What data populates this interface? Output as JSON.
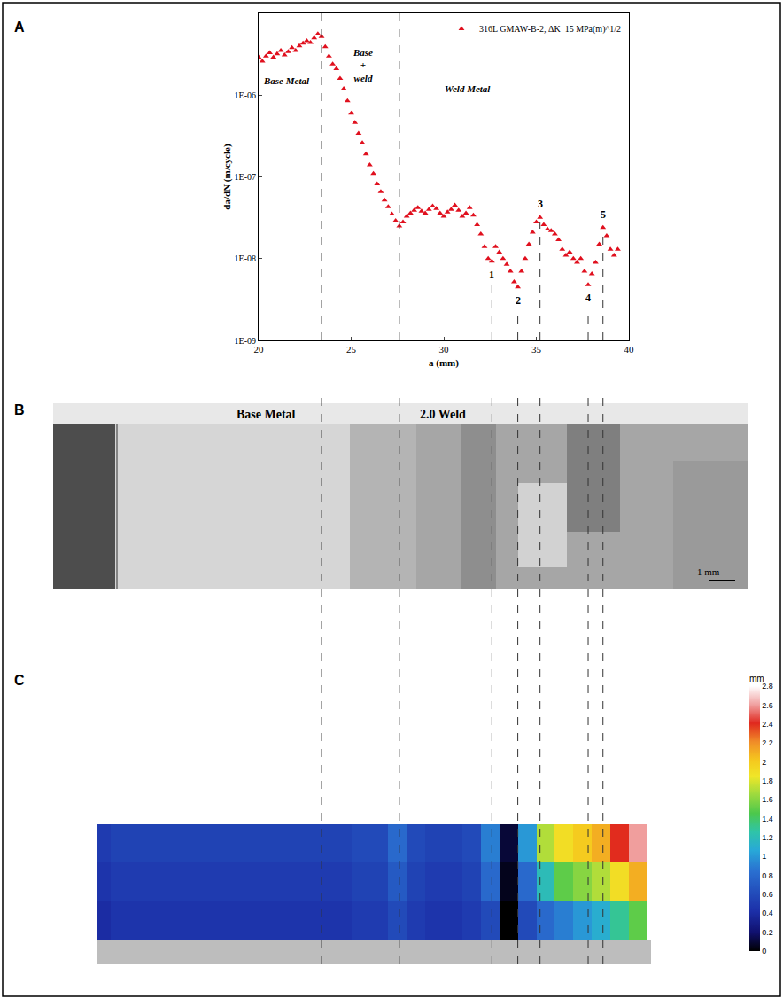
{
  "chart_data": {
    "type": "scatter",
    "x": [
      20.0,
      20.2,
      20.4,
      20.6,
      20.8,
      21.0,
      21.2,
      21.4,
      21.6,
      21.8,
      22.0,
      22.2,
      22.4,
      22.6,
      22.8,
      23.0,
      23.2,
      23.4,
      23.6,
      23.8,
      24.0,
      24.2,
      24.4,
      24.6,
      24.8,
      25.0,
      25.2,
      25.4,
      25.6,
      25.8,
      26.0,
      26.2,
      26.4,
      26.6,
      26.8,
      27.0,
      27.2,
      27.4,
      27.6,
      27.8,
      28.0,
      28.2,
      28.4,
      28.6,
      28.8,
      29.0,
      29.2,
      29.4,
      29.6,
      29.8,
      30.0,
      30.2,
      30.4,
      30.6,
      30.8,
      31.0,
      31.2,
      31.4,
      31.6,
      31.8,
      32.0,
      32.2,
      32.4,
      32.6,
      32.8,
      33.0,
      33.2,
      33.4,
      33.6,
      33.8,
      34.0,
      34.2,
      34.4,
      34.6,
      34.8,
      35.0,
      35.2,
      35.4,
      35.6,
      35.8,
      36.0,
      36.2,
      36.4,
      36.6,
      36.8,
      37.0,
      37.2,
      37.4,
      37.6,
      37.8,
      38.0,
      38.2,
      38.4,
      38.6,
      38.8,
      39.0,
      39.2,
      39.4
    ],
    "series": [
      {
        "name": "316L GMAW-B-2, ΔK  15 MPa(m)^1/2",
        "color": "#e0101e",
        "marker": "triangle-up",
        "values": [
          2.9e-06,
          2.6e-06,
          3e-06,
          3.3e-06,
          2.9e-06,
          3.2e-06,
          3.5e-06,
          3.1e-06,
          3.4e-06,
          3.8e-06,
          3.5e-06,
          4e-06,
          4.3e-06,
          4.6e-06,
          4.4e-06,
          5e-06,
          5.6e-06,
          5.2e-06,
          3.9e-06,
          3e-06,
          2.4e-06,
          2.1e-06,
          1.6e-06,
          1.2e-06,
          8.5e-07,
          6e-07,
          4.6e-07,
          3.4e-07,
          2.6e-07,
          1.9e-07,
          1.4e-07,
          1.1e-07,
          8.2e-08,
          6.6e-08,
          5.2e-08,
          4.3e-08,
          3.5e-08,
          2.9e-08,
          2.5e-08,
          2.8e-08,
          3.3e-08,
          3.6e-08,
          3.9e-08,
          4.2e-08,
          3.8e-08,
          3.6e-08,
          4e-08,
          4.4e-08,
          4.1e-08,
          3.6e-08,
          3.3e-08,
          3.7e-08,
          4e-08,
          4.5e-08,
          3.9e-08,
          3.3e-08,
          3.6e-08,
          4.2e-08,
          3.4e-08,
          2.6e-08,
          2e-08,
          1.4e-08,
          1e-08,
          9.3e-09,
          1.4e-08,
          1.2e-08,
          1e-08,
          8.5e-09,
          7e-09,
          5.2e-09,
          4.5e-09,
          7e-09,
          1e-08,
          1.5e-08,
          2.1e-08,
          2.8e-08,
          3.2e-08,
          2.6e-08,
          2.3e-08,
          2.2e-08,
          2e-08,
          1.7e-08,
          1.3e-08,
          1.1e-08,
          1.2e-08,
          1e-08,
          9e-09,
          1e-08,
          7e-09,
          4.8e-09,
          6.5e-09,
          9e-09,
          1.5e-08,
          2.4e-08,
          1.9e-08,
          1.3e-08,
          1.1e-08,
          1.3e-08
        ]
      }
    ],
    "x_label": "a (mm)",
    "y_label": "da/dN (m/cycle)",
    "xlim": [
      20,
      40
    ],
    "xticks": [
      20,
      25,
      30,
      35,
      40
    ],
    "ylim": [
      1e-09,
      1e-05
    ],
    "yticks": [
      {
        "value": 1e-09,
        "label": "1E-09"
      },
      {
        "value": 1e-08,
        "label": "1E-08"
      },
      {
        "value": 1e-07,
        "label": "1E-07"
      },
      {
        "value": 1e-06,
        "label": "1E-06"
      }
    ],
    "log": "y",
    "grid": false,
    "legend": "upper right",
    "region_labels": [
      {
        "text": "Base Metal",
        "x": 21.5,
        "y": 1.5e-06
      },
      {
        "text": "Base\n+\nweld",
        "x": 25.6,
        "y": 2.3e-06
      },
      {
        "text": "Weld Metal",
        "x": 31.3,
        "y": 1.2e-06
      }
    ],
    "region_bounds": [
      23.4,
      27.6
    ],
    "point_labels": [
      {
        "text": "1",
        "x": 32.6,
        "y": 9.3e-09
      },
      {
        "text": "2",
        "x": 34.0,
        "y": 4.5e-09
      },
      {
        "text": "3",
        "x": 35.2,
        "y": 3.2e-08
      },
      {
        "text": "4",
        "x": 37.8,
        "y": 4.8e-09
      },
      {
        "text": "5",
        "x": 38.6,
        "y": 2.4e-08
      }
    ]
  },
  "panel_letters": [
    "A",
    "B",
    "C"
  ],
  "fractograph": {
    "labels": [
      "Base Metal",
      "2.0 Weld"
    ],
    "scale_bar": "1 mm"
  },
  "height_map": {
    "a": [
      11.5,
      12.5,
      13.5,
      14.5,
      15.5,
      16.5,
      17.5,
      18.5,
      19.5,
      20.5,
      21.5,
      22.5,
      23.5,
      24.5,
      25.5,
      26.5,
      27.5,
      28.5,
      29.5,
      30.5,
      31.5,
      32.5,
      33.5,
      34.5,
      35.5,
      36.5,
      37.5,
      38.5,
      39.5,
      40.5
    ],
    "rows": [
      [
        0.4,
        0.45,
        0.45,
        0.45,
        0.45,
        0.45,
        0.45,
        0.45,
        0.45,
        0.45,
        0.45,
        0.45,
        0.45,
        0.45,
        0.5,
        0.5,
        0.6,
        0.5,
        0.45,
        0.45,
        0.5,
        0.6,
        0.0,
        0.6,
        0.8,
        0.9,
        1.0,
        1.1,
        1.3,
        1.5
      ],
      [
        0.45,
        0.5,
        0.5,
        0.5,
        0.5,
        0.5,
        0.5,
        0.5,
        0.5,
        0.5,
        0.5,
        0.5,
        0.5,
        0.5,
        0.55,
        0.55,
        0.7,
        0.55,
        0.5,
        0.5,
        0.55,
        0.8,
        0.05,
        0.8,
        1.2,
        1.5,
        1.6,
        1.7,
        1.9,
        2.1
      ],
      [
        0.5,
        0.55,
        0.55,
        0.55,
        0.55,
        0.55,
        0.55,
        0.55,
        0.55,
        0.55,
        0.55,
        0.55,
        0.55,
        0.55,
        0.6,
        0.6,
        0.8,
        0.6,
        0.55,
        0.55,
        0.6,
        0.9,
        0.1,
        1.0,
        1.7,
        1.9,
        2.0,
        2.1,
        2.4,
        2.6
      ]
    ],
    "zlim": [
      0,
      2.8
    ],
    "zticks": [
      0,
      0.2,
      0.4,
      0.6,
      0.8,
      1,
      1.2,
      1.4,
      1.6,
      1.8,
      2,
      2.2,
      2.4,
      2.6,
      2.8
    ],
    "unit": "mm"
  }
}
